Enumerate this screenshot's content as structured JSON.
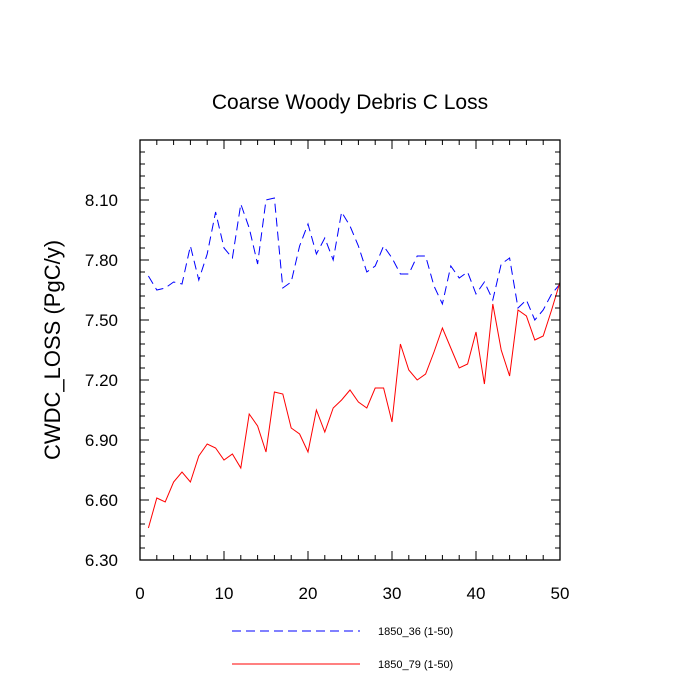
{
  "chart_data": {
    "type": "line",
    "title": "Coarse Woody Debris C Loss",
    "xlabel": "",
    "ylabel": "CWDC_LOSS  (PgC/y)",
    "xlim": [
      0,
      50
    ],
    "ylim": [
      6.3,
      8.4
    ],
    "x_ticks": [
      0,
      10,
      20,
      30,
      40,
      50
    ],
    "x_tick_labels": [
      "0",
      "10",
      "20",
      "30",
      "40",
      "50"
    ],
    "y_ticks": [
      6.3,
      6.6,
      6.9,
      7.2,
      7.5,
      7.8,
      8.1
    ],
    "y_tick_labels": [
      "6.30",
      "6.60",
      "6.90",
      "7.20",
      "7.50",
      "7.80",
      "8.10"
    ],
    "grid": false,
    "legend_position": "bottom",
    "x": [
      1,
      2,
      3,
      4,
      5,
      6,
      7,
      8,
      9,
      10,
      11,
      12,
      13,
      14,
      15,
      16,
      17,
      18,
      19,
      20,
      21,
      22,
      23,
      24,
      25,
      26,
      27,
      28,
      29,
      30,
      31,
      32,
      33,
      34,
      35,
      36,
      37,
      38,
      39,
      40,
      41,
      42,
      43,
      44,
      45,
      46,
      47,
      48,
      49,
      50
    ],
    "series": [
      {
        "name": "1850_36 (1-50)",
        "color": "#0000ff",
        "dash": "dashed",
        "values": [
          7.72,
          7.65,
          7.66,
          7.69,
          7.68,
          7.87,
          7.7,
          7.83,
          8.04,
          7.86,
          7.81,
          8.08,
          7.96,
          7.78,
          8.1,
          8.11,
          7.66,
          7.69,
          7.87,
          7.98,
          7.83,
          7.91,
          7.8,
          8.04,
          7.97,
          7.87,
          7.74,
          7.77,
          7.87,
          7.81,
          7.73,
          7.73,
          7.82,
          7.82,
          7.67,
          7.58,
          7.77,
          7.71,
          7.74,
          7.63,
          7.69,
          7.6,
          7.78,
          7.81,
          7.56,
          7.6,
          7.5,
          7.55,
          7.63,
          7.68
        ]
      },
      {
        "name": "1850_79 (1-50)",
        "color": "#ff0000",
        "dash": "solid",
        "values": [
          6.46,
          6.61,
          6.59,
          6.69,
          6.74,
          6.69,
          6.82,
          6.88,
          6.86,
          6.8,
          6.83,
          6.76,
          7.03,
          6.97,
          6.84,
          7.14,
          7.13,
          6.96,
          6.93,
          6.84,
          7.05,
          6.94,
          7.06,
          7.1,
          7.15,
          7.09,
          7.06,
          7.16,
          7.16,
          6.99,
          7.38,
          7.25,
          7.2,
          7.23,
          7.34,
          7.46,
          7.36,
          7.26,
          7.28,
          7.44,
          7.18,
          7.58,
          7.35,
          7.22,
          7.55,
          7.52,
          7.4,
          7.42,
          7.55,
          7.69
        ]
      }
    ]
  }
}
